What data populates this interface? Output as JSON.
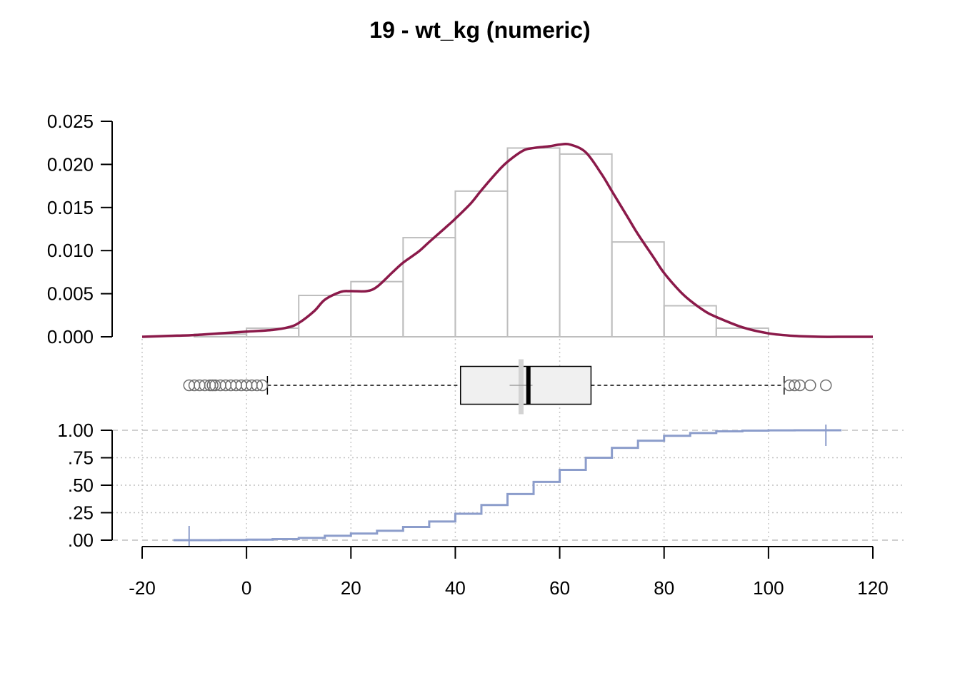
{
  "title": "19 - wt_kg (numeric)",
  "chart_data": [
    {
      "type": "bar",
      "panel": "histogram with density curve",
      "bin_edges": [
        -10,
        0,
        10,
        20,
        30,
        40,
        50,
        60,
        70,
        80,
        90,
        100
      ],
      "values": [
        0.0003,
        0.001,
        0.0048,
        0.0064,
        0.0115,
        0.0169,
        0.0219,
        0.0212,
        0.011,
        0.0036,
        0.001
      ],
      "ylim": [
        0,
        0.025
      ],
      "yticks": [
        "0.000",
        "0.005",
        "0.010",
        "0.015",
        "0.020",
        "0.025"
      ],
      "density": {
        "x": [
          -20,
          -15,
          -10,
          -5,
          0,
          5,
          8,
          10,
          13,
          15,
          18,
          20,
          23,
          25,
          28,
          30,
          33,
          35,
          38,
          40,
          43,
          45,
          48,
          50,
          53,
          55,
          58,
          60,
          62,
          65,
          68,
          70,
          73,
          75,
          78,
          80,
          83,
          85,
          88,
          90,
          95,
          100,
          105,
          110,
          115,
          120
        ],
        "y": [
          0.0,
          0.0001,
          0.0002,
          0.0004,
          0.0006,
          0.0008,
          0.0011,
          0.0016,
          0.003,
          0.0043,
          0.0052,
          0.0053,
          0.0053,
          0.0058,
          0.0075,
          0.0086,
          0.0099,
          0.011,
          0.0126,
          0.0137,
          0.0155,
          0.017,
          0.0191,
          0.0203,
          0.0216,
          0.0219,
          0.0221,
          0.0223,
          0.0223,
          0.0214,
          0.0189,
          0.0169,
          0.0139,
          0.0119,
          0.0092,
          0.0074,
          0.0053,
          0.0042,
          0.0029,
          0.0023,
          0.0011,
          0.0004,
          0.0001,
          0.0,
          0.0,
          0.0
        ]
      },
      "density_color": "#8B1A4A",
      "bar_edge_color": "#BEBEBE"
    },
    {
      "type": "boxplot",
      "q1": 41,
      "median": 54,
      "q3": 66,
      "mean": 52.6,
      "whisker_low": 4,
      "whisker_high": 103,
      "outliers": [
        -11,
        -10,
        -9,
        -8,
        -7,
        -6.5,
        -6,
        -5,
        -4,
        -3,
        -2,
        -1,
        0,
        1,
        2,
        3,
        104,
        105,
        106,
        108,
        111
      ]
    },
    {
      "type": "line",
      "panel": "empirical cumulative distribution",
      "x": [
        -11,
        -5,
        0,
        5,
        10,
        15,
        20,
        25,
        30,
        35,
        40,
        45,
        50,
        55,
        60,
        65,
        70,
        75,
        80,
        85,
        90,
        95,
        100,
        105,
        111
      ],
      "y": [
        0.0,
        0.002,
        0.005,
        0.01,
        0.02,
        0.04,
        0.06,
        0.085,
        0.12,
        0.17,
        0.24,
        0.32,
        0.42,
        0.53,
        0.64,
        0.75,
        0.84,
        0.905,
        0.95,
        0.975,
        0.99,
        0.997,
        0.999,
        1.0,
        1.0
      ],
      "ylim": [
        0,
        1
      ],
      "yticks": [
        ".00",
        ".25",
        ".50",
        ".75",
        "1.00"
      ],
      "line_color": "#8C9DCB"
    }
  ],
  "x_axis": {
    "xlim": [
      -20,
      120
    ],
    "ticks": [
      "-20",
      "0",
      "20",
      "40",
      "60",
      "80",
      "100",
      "120"
    ]
  }
}
